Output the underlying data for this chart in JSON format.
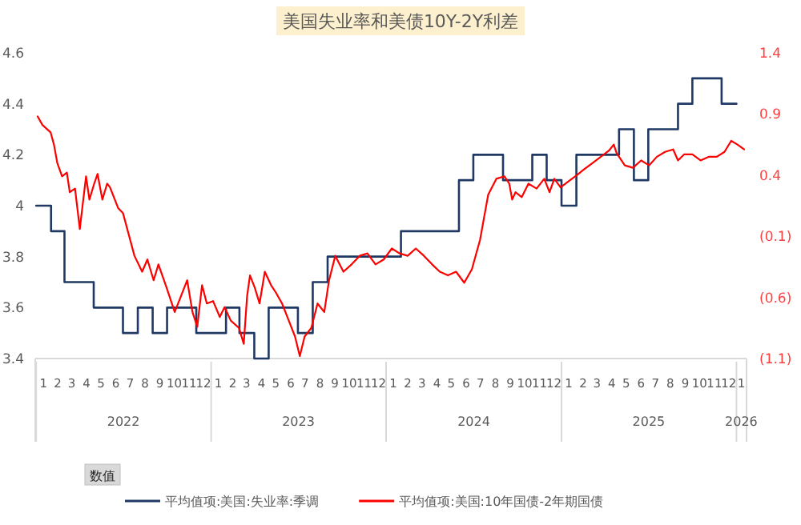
{
  "chart_data": {
    "type": "line",
    "title": "美国失业率和美债10Y-2Y利差",
    "xlim": [
      "2021-12-30",
      "2026-01-22"
    ],
    "xticks": [
      {
        "value": "2022-01-16",
        "label": "1"
      },
      {
        "value": "2022-02-15",
        "label": "2"
      },
      {
        "value": "2022-03-16",
        "label": "3"
      },
      {
        "value": "2022-04-16",
        "label": "4"
      },
      {
        "value": "2022-05-16",
        "label": "5"
      },
      {
        "value": "2022-06-16",
        "label": "6"
      },
      {
        "value": "2022-07-16",
        "label": "7"
      },
      {
        "value": "2022-08-16",
        "label": "8"
      },
      {
        "value": "2022-09-16",
        "label": "9"
      },
      {
        "value": "2022-10-16",
        "label": "10"
      },
      {
        "value": "2022-11-16",
        "label": "11"
      },
      {
        "value": "2022-12-16",
        "label": "12"
      },
      {
        "value": "2023-01-16",
        "label": "1"
      },
      {
        "value": "2023-02-15",
        "label": "2"
      },
      {
        "value": "2023-03-16",
        "label": "3"
      },
      {
        "value": "2023-04-16",
        "label": "4"
      },
      {
        "value": "2023-05-16",
        "label": "5"
      },
      {
        "value": "2023-06-16",
        "label": "6"
      },
      {
        "value": "2023-07-16",
        "label": "7"
      },
      {
        "value": "2023-08-16",
        "label": "8"
      },
      {
        "value": "2023-09-16",
        "label": "9"
      },
      {
        "value": "2023-10-16",
        "label": "10"
      },
      {
        "value": "2023-11-16",
        "label": "11"
      },
      {
        "value": "2023-12-16",
        "label": "12"
      },
      {
        "value": "2024-01-16",
        "label": "1"
      },
      {
        "value": "2024-02-15",
        "label": "2"
      },
      {
        "value": "2024-03-16",
        "label": "3"
      },
      {
        "value": "2024-04-16",
        "label": "4"
      },
      {
        "value": "2024-05-16",
        "label": "5"
      },
      {
        "value": "2024-06-16",
        "label": "6"
      },
      {
        "value": "2024-07-16",
        "label": "7"
      },
      {
        "value": "2024-08-16",
        "label": "8"
      },
      {
        "value": "2024-09-16",
        "label": "9"
      },
      {
        "value": "2024-10-16",
        "label": "10"
      },
      {
        "value": "2024-11-16",
        "label": "11"
      },
      {
        "value": "2024-12-16",
        "label": "12"
      },
      {
        "value": "2025-01-16",
        "label": "1"
      },
      {
        "value": "2025-02-15",
        "label": "2"
      },
      {
        "value": "2025-03-16",
        "label": "3"
      },
      {
        "value": "2025-04-16",
        "label": "4"
      },
      {
        "value": "2025-05-16",
        "label": "5"
      },
      {
        "value": "2025-06-16",
        "label": "6"
      },
      {
        "value": "2025-07-16",
        "label": "7"
      },
      {
        "value": "2025-08-16",
        "label": "8"
      },
      {
        "value": "2025-09-16",
        "label": "9"
      },
      {
        "value": "2025-10-16",
        "label": "10"
      },
      {
        "value": "2025-11-16",
        "label": "11"
      },
      {
        "value": "2025-12-16",
        "label": "12"
      },
      {
        "value": "2026-01-11",
        "label": "1"
      }
    ],
    "x2lim": [
      "2021-12-30",
      "2026-01-22"
    ],
    "x2ticks": [
      {
        "value": "2022-07-02",
        "label": "2022"
      },
      {
        "value": "2023-07-02",
        "label": "2023"
      },
      {
        "value": "2024-07-02",
        "label": "2024"
      },
      {
        "value": "2025-07-02",
        "label": "2025"
      },
      {
        "value": "2026-01-11",
        "label": "2026"
      }
    ],
    "ylim": [
      3.4,
      4.6
    ],
    "yticks": [
      3.4,
      3.6,
      3.8,
      4,
      4.2,
      4.4,
      4.6
    ],
    "y2lim": [
      -1.1,
      1.4
    ],
    "y2ticks": [
      {
        "value": -1.1,
        "label": "(1.1)"
      },
      {
        "value": -0.6,
        "label": "(0.6)"
      },
      {
        "value": -0.1,
        "label": "(0.1)"
      },
      0.4,
      0.9,
      1.4
    ],
    "legend": "bottom",
    "annotations": [
      "数值"
    ],
    "series": [
      {
        "name": "平均值项:美国:失业率:季调",
        "type": "step",
        "color": "#1f3864",
        "x": [
          "2022-01",
          "2022-02",
          "2022-03",
          "2022-04",
          "2022-05",
          "2022-06",
          "2022-07",
          "2022-08",
          "2022-09",
          "2022-10",
          "2022-11",
          "2022-12",
          "2023-01",
          "2023-02",
          "2023-03",
          "2023-04",
          "2023-05",
          "2023-06",
          "2023-07",
          "2023-08",
          "2023-09",
          "2023-10",
          "2023-11",
          "2023-12",
          "2024-01",
          "2024-02",
          "2024-03",
          "2024-04",
          "2024-05",
          "2024-06",
          "2024-07",
          "2024-08",
          "2024-09",
          "2024-10",
          "2024-11",
          "2024-12",
          "2025-01",
          "2025-02",
          "2025-03",
          "2025-04",
          "2025-05",
          "2025-06",
          "2025-07",
          "2025-08",
          "2025-09",
          "2025-10",
          "2025-11",
          "2025-12",
          "2026-01"
        ],
        "values": [
          4.0,
          3.9,
          3.7,
          3.7,
          3.6,
          3.6,
          3.5,
          3.6,
          3.5,
          3.6,
          3.6,
          3.5,
          3.5,
          3.6,
          3.5,
          3.4,
          3.6,
          3.6,
          3.5,
          3.7,
          3.8,
          3.8,
          3.8,
          3.8,
          3.8,
          3.9,
          3.9,
          3.9,
          3.9,
          4.1,
          4.2,
          4.2,
          4.1,
          4.1,
          4.2,
          4.1,
          4.0,
          4.2,
          4.2,
          4.2,
          4.3,
          4.1,
          4.3,
          4.3,
          4.4,
          4.5,
          4.5,
          4.4,
          4.4
        ]
      },
      {
        "name": "平均值项:美国:10年国债-2年期国债",
        "axis": "y2",
        "color": "#ff0000",
        "x": [
          "2022-01-04",
          "2022-01-14",
          "2022-01-31",
          "2022-02-07",
          "2022-02-14",
          "2022-02-24",
          "2022-03-06",
          "2022-03-12",
          "2022-03-23",
          "2022-04-02",
          "2022-04-15",
          "2022-04-22",
          "2022-05-02",
          "2022-05-09",
          "2022-05-19",
          "2022-05-29",
          "2022-06-04",
          "2022-06-14",
          "2022-06-21",
          "2022-07-01",
          "2022-07-25",
          "2022-08-10",
          "2022-08-21",
          "2022-09-03",
          "2022-09-13",
          "2022-09-30",
          "2022-10-17",
          "2022-10-30",
          "2022-11-12",
          "2022-11-23",
          "2022-12-03",
          "2022-12-13",
          "2022-12-23",
          "2023-01-05",
          "2023-01-19",
          "2023-01-29",
          "2023-02-11",
          "2023-02-28",
          "2023-03-10",
          "2023-03-17",
          "2023-03-23",
          "2023-04-02",
          "2023-04-12",
          "2023-04-23",
          "2023-05-06",
          "2023-05-16",
          "2023-05-29",
          "2023-06-12",
          "2023-06-25",
          "2023-07-05",
          "2023-07-15",
          "2023-07-29",
          "2023-08-11",
          "2023-08-25",
          "2023-09-04",
          "2023-09-17",
          "2023-10-04",
          "2023-10-21",
          "2023-11-07",
          "2023-11-23",
          "2023-12-10",
          "2023-12-27",
          "2024-01-13",
          "2024-01-29",
          "2024-02-15",
          "2024-03-03",
          "2024-03-20",
          "2024-04-06",
          "2024-04-22",
          "2024-05-09",
          "2024-05-26",
          "2024-06-12",
          "2024-06-28",
          "2024-07-15",
          "2024-08-01",
          "2024-08-18",
          "2024-09-04",
          "2024-09-14",
          "2024-09-20",
          "2024-09-27",
          "2024-10-10",
          "2024-10-24",
          "2024-11-10",
          "2024-11-26",
          "2024-12-07",
          "2024-12-17",
          "2024-12-30",
          "2025-01-16",
          "2025-02-02",
          "2025-02-18",
          "2025-03-07",
          "2025-03-24",
          "2025-04-10",
          "2025-04-20",
          "2025-04-26",
          "2025-05-13",
          "2025-05-30",
          "2025-06-16",
          "2025-07-03",
          "2025-07-19",
          "2025-08-05",
          "2025-08-22",
          "2025-09-01",
          "2025-09-14",
          "2025-10-01",
          "2025-10-18",
          "2025-11-04",
          "2025-11-21",
          "2025-12-07",
          "2025-12-21",
          "2026-01-03",
          "2026-01-17"
        ],
        "values": [
          0.88,
          0.81,
          0.75,
          0.65,
          0.5,
          0.39,
          0.42,
          0.26,
          0.29,
          -0.04,
          0.39,
          0.2,
          0.33,
          0.41,
          0.2,
          0.33,
          0.3,
          0.2,
          0.13,
          0.09,
          -0.26,
          -0.39,
          -0.29,
          -0.46,
          -0.33,
          -0.52,
          -0.72,
          -0.59,
          -0.46,
          -0.72,
          -0.84,
          -0.5,
          -0.65,
          -0.63,
          -0.76,
          -0.68,
          -0.79,
          -0.85,
          -0.98,
          -0.59,
          -0.42,
          -0.52,
          -0.65,
          -0.39,
          -0.5,
          -0.56,
          -0.65,
          -0.79,
          -0.92,
          -1.08,
          -0.92,
          -0.85,
          -0.65,
          -0.72,
          -0.46,
          -0.26,
          -0.39,
          -0.33,
          -0.26,
          -0.24,
          -0.33,
          -0.29,
          -0.2,
          -0.24,
          -0.26,
          -0.2,
          -0.26,
          -0.33,
          -0.39,
          -0.42,
          -0.39,
          -0.48,
          -0.37,
          -0.13,
          0.24,
          0.37,
          0.39,
          0.33,
          0.2,
          0.26,
          0.22,
          0.33,
          0.29,
          0.37,
          0.26,
          0.37,
          0.3,
          0.35,
          0.4,
          0.45,
          0.5,
          0.55,
          0.6,
          0.65,
          0.58,
          0.48,
          0.46,
          0.52,
          0.48,
          0.55,
          0.59,
          0.61,
          0.52,
          0.57,
          0.57,
          0.52,
          0.55,
          0.55,
          0.59,
          0.68,
          0.65,
          0.61
        ]
      }
    ]
  }
}
